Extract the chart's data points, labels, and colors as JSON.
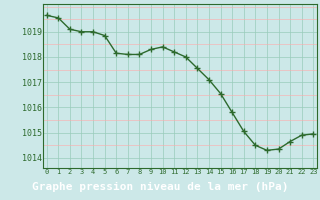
{
  "x": [
    0,
    1,
    2,
    3,
    4,
    5,
    6,
    7,
    8,
    9,
    10,
    11,
    12,
    13,
    14,
    15,
    16,
    17,
    18,
    19,
    20,
    21,
    22,
    23
  ],
  "y": [
    1019.65,
    1019.55,
    1019.1,
    1019.0,
    1019.0,
    1018.85,
    1018.15,
    1018.1,
    1018.1,
    1018.3,
    1018.4,
    1018.2,
    1018.0,
    1017.55,
    1017.1,
    1016.55,
    1015.8,
    1015.05,
    1014.5,
    1014.3,
    1014.35,
    1014.65,
    1014.9,
    1014.95
  ],
  "line_color": "#2d6a2d",
  "marker": "+",
  "marker_size": 4,
  "marker_color": "#2d6a2d",
  "bg_color": "#cce8e8",
  "grid_major_color": "#99ccbb",
  "grid_minor_color": "#ffaaaa",
  "xlabel": "Graphe pression niveau de la mer (hPa)",
  "xlabel_fontsize": 8,
  "ylabel_ticks": [
    1014,
    1015,
    1016,
    1017,
    1018,
    1019
  ],
  "ylim": [
    1013.6,
    1020.1
  ],
  "xlim": [
    -0.3,
    23.3
  ],
  "tick_color": "#2d6a2d",
  "spine_color": "#2d6a2d",
  "xlabel_bg": "#336633",
  "xlabel_text_color": "#ffffff",
  "linewidth": 1.0
}
